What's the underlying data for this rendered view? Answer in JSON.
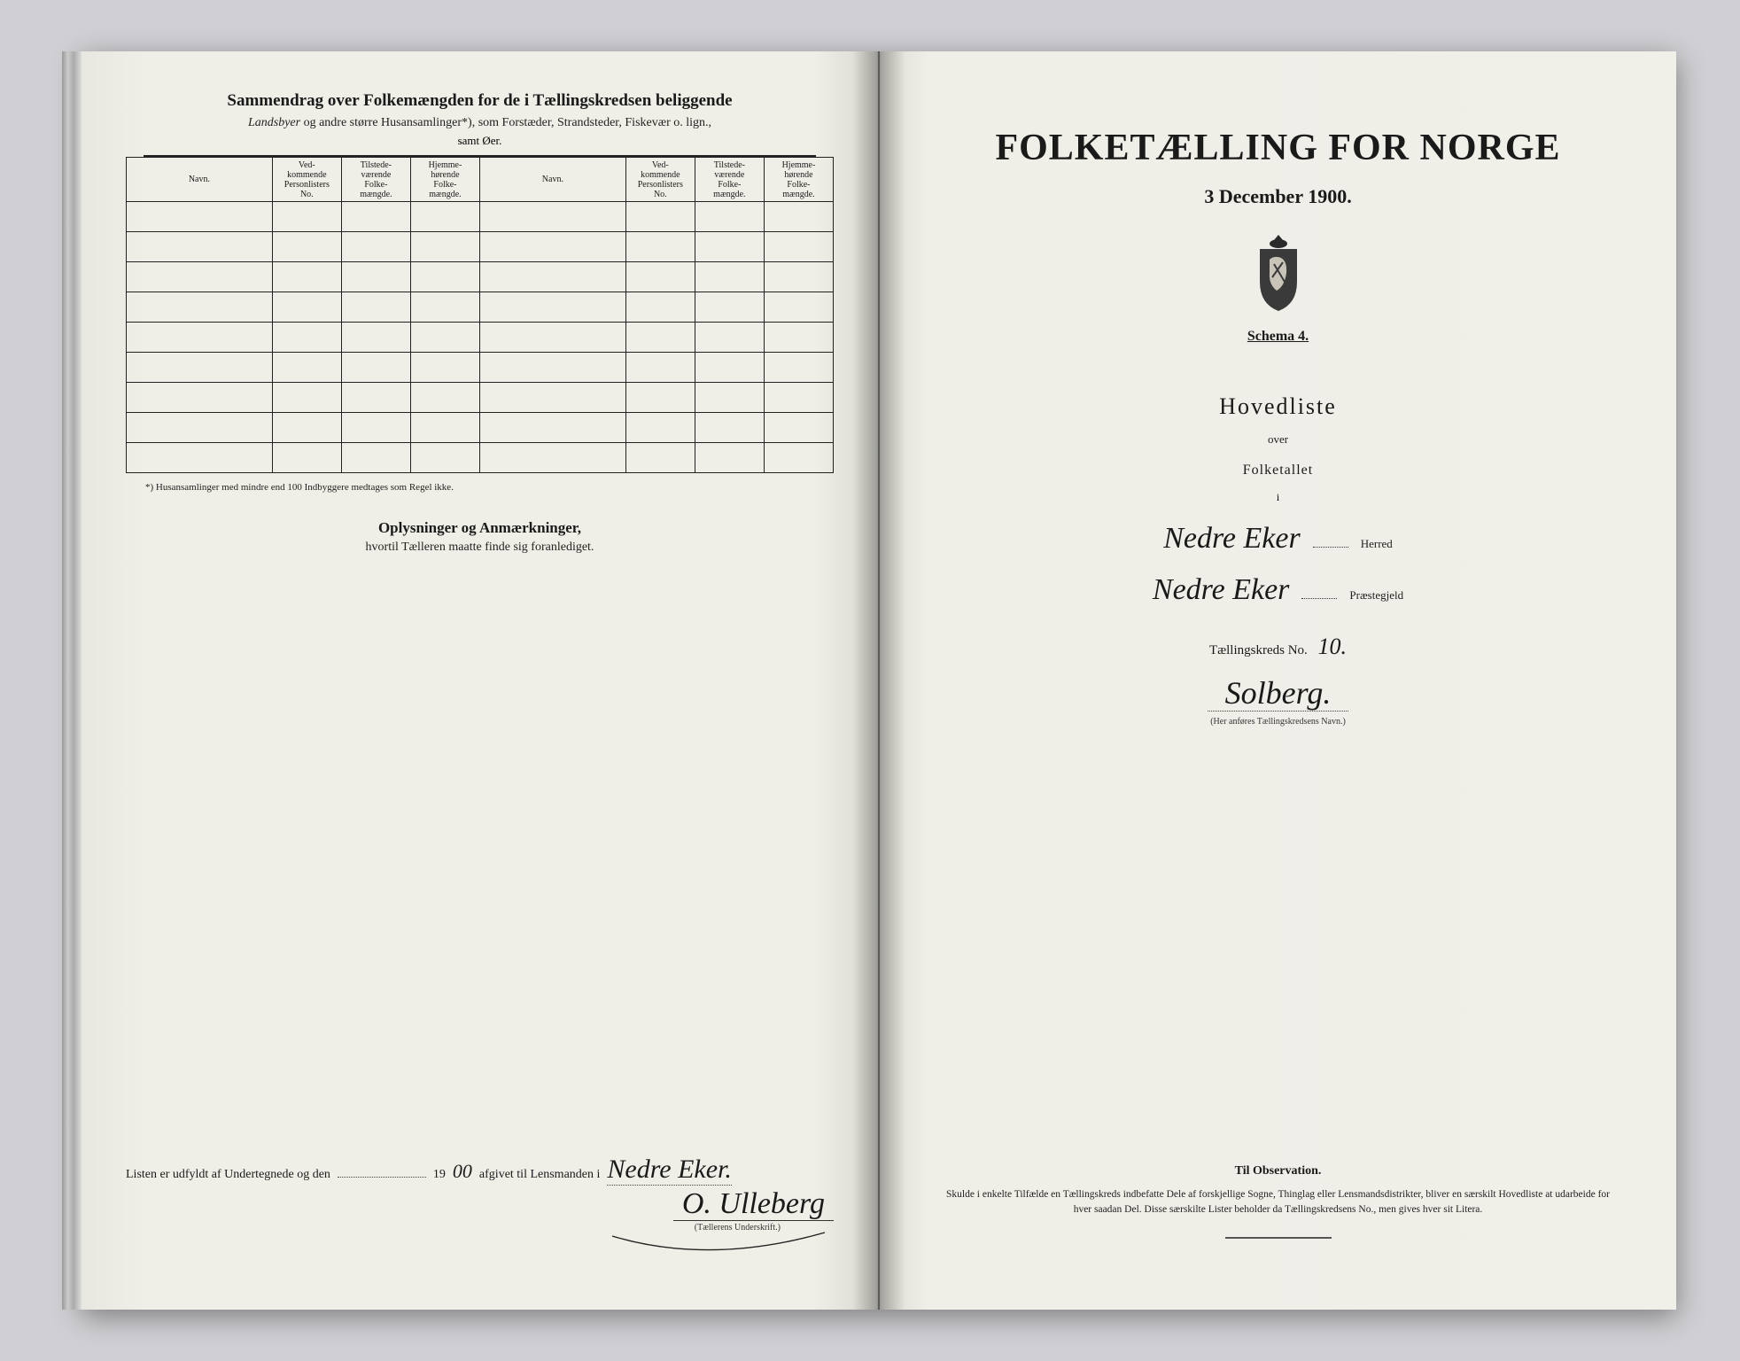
{
  "colors": {
    "page_bg": "#f0efe8",
    "desk_bg": "#d0d0d4",
    "ink": "#1a1a1a",
    "rule": "#222222"
  },
  "left_page": {
    "title": "Sammendrag over Folkemængden for de i Tællingskredsen beliggende",
    "subtitle_prefix_italic": "Landsbyer",
    "subtitle_rest": " og andre større Husansamlinger*), som Forstæder, Strandsteder, Fiskevær o. lign.,",
    "samt": "samt Øer.",
    "table": {
      "columns": [
        "Navn.",
        "Ved-\nkommende\nPersonlisters\nNo.",
        "Tilstede-\nværende\nFolke-\nmængde.",
        "Hjemme-\nhørende\nFolke-\nmængde.",
        "Navn.",
        "Ved-\nkommende\nPersonlisters\nNo.",
        "Tilstede-\nværende\nFolke-\nmængde.",
        "Hjemme-\nhørende\nFolke-\nmængde."
      ],
      "col_classes": [
        "col-navn",
        "col-small",
        "col-small",
        "col-small",
        "col-navn",
        "col-small",
        "col-small",
        "col-small"
      ],
      "row_count": 9
    },
    "footnote": "*) Husansamlinger med mindre end 100 Indbyggere medtages som Regel ikke.",
    "oplys_header": "Oplysninger og Anmærkninger,",
    "oplys_sub": "hvortil Tælleren maatte finde sig foranlediget.",
    "listen_prefix": "Listen er udfyldt af Undertegnede og den",
    "listen_year": "1900",
    "listen_hand_year_prefix": "19",
    "listen_hand_year_fill": "00",
    "listen_mid": "afgivet til Lensmanden i",
    "listen_place_hand": "Nedre Eker.",
    "signature_hand": "O. Ulleberg",
    "signature_caption": "(Tællerens Underskrift.)"
  },
  "right_page": {
    "title": "FOLKETÆLLING FOR NORGE",
    "date": "3 December 1900.",
    "schema": "Schema 4.",
    "hovedliste": "Hovedliste",
    "over": "over",
    "folketallet": "Folketallet",
    "i": "i",
    "herred_hand": "Nedre Eker",
    "herred_label": "Herred",
    "praeste_hand": "Nedre Eker",
    "praeste_label": "Præstegjeld",
    "kreds_label": "Tællingskreds No.",
    "kreds_no_hand": "10.",
    "kreds_name_hand": "Solberg.",
    "kreds_caption": "(Her anføres Tællingskredsens Navn.)",
    "obs_title": "Til Observation.",
    "obs_text": "Skulde i enkelte Tilfælde en Tællingskreds indbefatte Dele af forskjellige Sogne, Thinglag eller Lensmandsdistrikter, bliver en særskilt Hovedliste at udarbeide for hver saadan Del. Disse særskilte Lister beholder da Tællingskredsens No., men gives hver sit Litera."
  }
}
